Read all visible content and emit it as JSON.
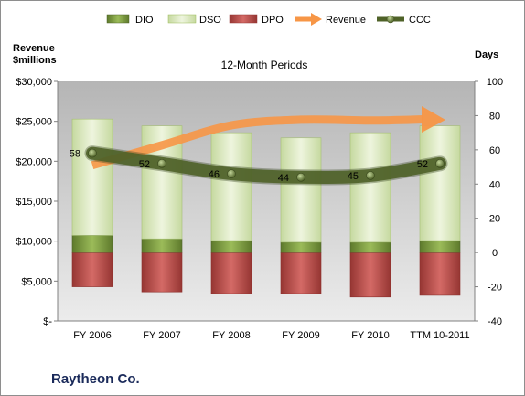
{
  "chart_data": {
    "type": "bar",
    "title": "12-Month Periods",
    "y_left_label": [
      "Revenue",
      "$millions"
    ],
    "y_right_label": "Days",
    "y_left_ticks": [
      "$-",
      "$5,000",
      "$10,000",
      "$15,000",
      "$20,000",
      "$25,000",
      "$30,000"
    ],
    "y_left_range": [
      0,
      30000
    ],
    "y_right_ticks": [
      "-40",
      "-20",
      "0",
      "20",
      "40",
      "60",
      "80",
      "100"
    ],
    "y_right_range": [
      -40,
      100
    ],
    "categories": [
      "FY 2006",
      "FY 2007",
      "FY 2008",
      "FY 2009",
      "FY 2010",
      "TTM 10-2011"
    ],
    "legend": [
      "DIO",
      "DSO",
      "DPO",
      "Revenue",
      "CCC"
    ],
    "series": [
      {
        "name": "DIO",
        "axis": "right",
        "values": [
          10,
          8,
          7,
          6,
          6,
          7
        ]
      },
      {
        "name": "DSO",
        "axis": "right",
        "values": [
          68,
          66,
          63,
          61,
          64,
          67
        ]
      },
      {
        "name": "DPO",
        "axis": "right",
        "values": [
          -20,
          -23,
          -24,
          -24,
          -26,
          -25
        ]
      },
      {
        "name": "Revenue",
        "axis": "left",
        "values": [
          19500,
          22000,
          24500,
          25200,
          25100,
          25300
        ]
      },
      {
        "name": "CCC",
        "axis": "right",
        "values": [
          58,
          52,
          46,
          44,
          45,
          52
        ],
        "labels": [
          "58",
          "52",
          "46",
          "44",
          "45",
          "52"
        ]
      }
    ],
    "colors": {
      "DIO": "#77933c",
      "DSO": "#d7e4bd",
      "DPO": "#c0504d",
      "Revenue": "#f79646",
      "CCC": "#4f6228",
      "plot_bg": "#c8c8c8"
    }
  },
  "company": "Raytheon Co."
}
